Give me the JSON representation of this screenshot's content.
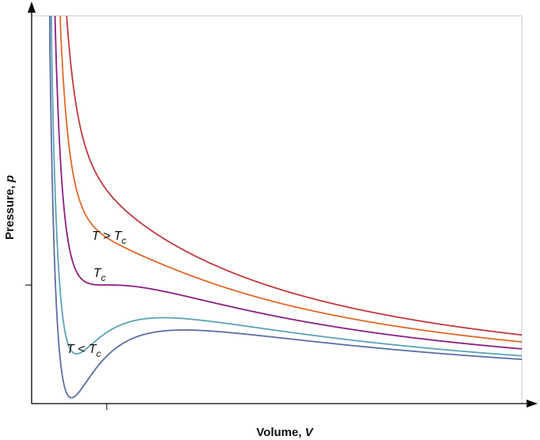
{
  "chart_data": {
    "type": "line",
    "title": "",
    "xlabel": "Volume, ",
    "xlabel_var": "V",
    "ylabel": "Pressure, ",
    "ylabel_var": "p",
    "model": "reduced van der Waals isotherms p = 8T/(3V-1) - 3/V^2",
    "xlim": [
      0.3,
      4.87
    ],
    "ylim": [
      0,
      3.27
    ],
    "xticks": [
      1
    ],
    "yticks": [
      1
    ],
    "grid": false,
    "series": [
      {
        "T": 1.2,
        "color": "#c0393f"
      },
      {
        "T": 1.1,
        "color": "#e0692a"
      },
      {
        "T": 1.0,
        "color": "#8c1f82"
      },
      {
        "T": 0.9,
        "color": "#5ba3b8"
      },
      {
        "T": 0.85,
        "color": "#5b6fa3"
      }
    ],
    "annotations": [
      {
        "text": "T > T",
        "sub": "c"
      },
      {
        "text": "T",
        "sub": "c"
      },
      {
        "text": "T < T",
        "sub": "c"
      }
    ]
  }
}
